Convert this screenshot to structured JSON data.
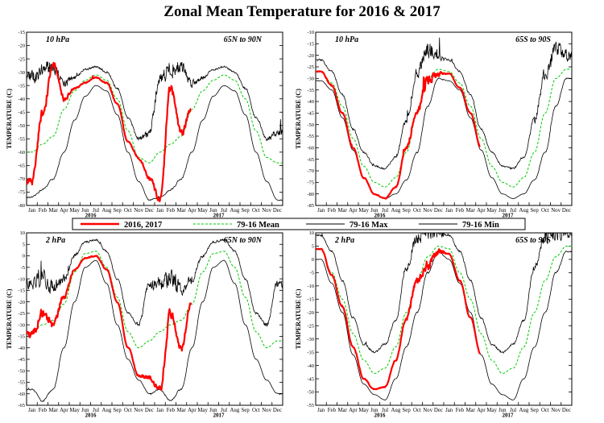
{
  "figure": {
    "title": "Zonal Mean Temperature for 2016 & 2017"
  },
  "legend": {
    "entries": [
      {
        "label": "2016, 2017",
        "color": "#ff0000",
        "style": "solid-thick"
      },
      {
        "label": "79-16 Mean",
        "color": "#00cc00",
        "style": "dashed"
      },
      {
        "label": "79-16 Max",
        "color": "#000000",
        "style": "solid"
      },
      {
        "label": "79-16 Min",
        "color": "#000000",
        "style": "solid"
      }
    ]
  },
  "chart_data": [
    {
      "type": "line",
      "pressure": "10 hPa",
      "region": "65N to 90N",
      "hemisphere": "N",
      "ylabel": "TEMPERATURE (C)",
      "ylim": [
        -80,
        -15
      ],
      "yticks": [
        -80,
        -75,
        -70,
        -65,
        -60,
        -55,
        -50,
        -45,
        -40,
        -35,
        -30,
        -25,
        -20,
        -15
      ],
      "months": [
        "Jan",
        "Feb",
        "Mar",
        "Apr",
        "May",
        "Jun",
        "Jul",
        "Aug",
        "Sep",
        "Oct",
        "Nov",
        "Dec",
        "Jan",
        "Feb",
        "Mar",
        "Apr",
        "May",
        "Jun",
        "Jul",
        "Aug",
        "Sep",
        "Oct",
        "Nov",
        "Dec"
      ],
      "years": [
        "2016",
        "2017"
      ],
      "mean_monthly": [
        -60,
        -57,
        -54,
        -44,
        -37,
        -33,
        -31,
        -33,
        -40,
        -52,
        -62,
        -64,
        -60,
        -57,
        -54,
        -44,
        -37,
        -33,
        -31,
        -33,
        -40,
        -52,
        -62,
        -64
      ],
      "max_monthly": [
        -32,
        -29,
        -28,
        -34,
        -32,
        -29,
        -28,
        -30,
        -36,
        -47,
        -55,
        -53,
        -32,
        -29,
        -28,
        -34,
        -32,
        -29,
        -28,
        -30,
        -36,
        -47,
        -55,
        -53
      ],
      "min_monthly": [
        -77,
        -74,
        -70,
        -60,
        -48,
        -39,
        -35,
        -37,
        -46,
        -60,
        -71,
        -78,
        -77,
        -74,
        -70,
        -60,
        -48,
        -39,
        -35,
        -37,
        -46,
        -60,
        -71,
        -78
      ],
      "obs_monthly": [
        -71,
        -45,
        -27,
        -40,
        -36,
        -34,
        -32,
        -34,
        -42,
        -56,
        -62,
        -70,
        -78,
        -36,
        -53,
        -43
      ]
    },
    {
      "type": "line",
      "pressure": "10 hPa",
      "region": "65S to 90S",
      "hemisphere": "S",
      "ylabel": "TEMPERATURE (C)",
      "ylim": [
        -85,
        -10
      ],
      "yticks": [
        -85,
        -80,
        -75,
        -70,
        -65,
        -60,
        -55,
        -50,
        -45,
        -40,
        -35,
        -30,
        -25,
        -20,
        -15,
        -10
      ],
      "months": [
        "Jan",
        "Feb",
        "Mar",
        "Apr",
        "May",
        "Jun",
        "Jul",
        "Aug",
        "Sep",
        "Oct",
        "Nov",
        "Dec",
        "Jan",
        "Feb",
        "Mar",
        "Apr",
        "May",
        "Jun",
        "Jul",
        "Aug",
        "Sep",
        "Oct",
        "Nov",
        "Dec"
      ],
      "years": [
        "2016",
        "2017"
      ],
      "mean_monthly": [
        -27,
        -32,
        -42,
        -56,
        -68,
        -75,
        -77,
        -73,
        -62,
        -45,
        -30,
        -26,
        -27,
        -32,
        -42,
        -56,
        -68,
        -75,
        -77,
        -73,
        -62,
        -45,
        -30,
        -26
      ],
      "max_monthly": [
        -22,
        -27,
        -37,
        -52,
        -62,
        -68,
        -69,
        -64,
        -48,
        -28,
        -18,
        -20,
        -22,
        -27,
        -37,
        -52,
        -62,
        -68,
        -69,
        -64,
        -48,
        -28,
        -18,
        -20
      ],
      "min_monthly": [
        -31,
        -35,
        -47,
        -61,
        -73,
        -80,
        -82,
        -80,
        -74,
        -62,
        -42,
        -30,
        -31,
        -35,
        -47,
        -61,
        -73,
        -80,
        -82,
        -80,
        -74,
        -62,
        -42,
        -30
      ],
      "obs_monthly": [
        -27,
        -33,
        -45,
        -60,
        -73,
        -80,
        -82,
        -77,
        -60,
        -44,
        -30,
        -28,
        -28,
        -34,
        -45,
        -60
      ]
    },
    {
      "type": "line",
      "pressure": "2 hPa",
      "region": "65N to 90N",
      "hemisphere": "N",
      "ylabel": "TEMPERATURE (C)",
      "ylim": [
        -65,
        10
      ],
      "yticks": [
        -65,
        -60,
        -55,
        -50,
        -45,
        -40,
        -35,
        -30,
        -25,
        -20,
        -15,
        -10,
        -5,
        0,
        5,
        10
      ],
      "months": [
        "Jan",
        "Feb",
        "Mar",
        "Apr",
        "May",
        "Jun",
        "Jul",
        "Aug",
        "Sep",
        "Oct",
        "Nov",
        "Dec",
        "Jan",
        "Feb",
        "Mar",
        "Apr",
        "May",
        "Jun",
        "Jul",
        "Aug",
        "Sep",
        "Oct",
        "Nov",
        "Dec"
      ],
      "years": [
        "2016",
        "2017"
      ],
      "mean_monthly": [
        -33,
        -30,
        -28,
        -21,
        -7,
        1,
        2,
        -5,
        -18,
        -33,
        -40,
        -37,
        -33,
        -30,
        -28,
        -21,
        -7,
        1,
        2,
        -5,
        -18,
        -33,
        -40,
        -37
      ],
      "max_monthly": [
        -12,
        -10,
        -14,
        -10,
        0,
        6,
        7,
        2,
        -10,
        -25,
        -30,
        -12,
        -12,
        -10,
        -14,
        -10,
        0,
        6,
        7,
        2,
        -10,
        -25,
        -30,
        -12
      ],
      "min_monthly": [
        -58,
        -63,
        -58,
        -40,
        -20,
        -5,
        -2,
        -12,
        -30,
        -45,
        -54,
        -60,
        -58,
        -63,
        -58,
        -40,
        -20,
        -5,
        -2,
        -12,
        -30,
        -45,
        -54,
        -60
      ],
      "obs_monthly": [
        -34,
        -25,
        -30,
        -18,
        -6,
        -1,
        0,
        -6,
        -20,
        -40,
        -52,
        -53,
        -58,
        -25,
        -40,
        -20
      ]
    },
    {
      "type": "line",
      "pressure": "2 hPa",
      "region": "65S to 90S",
      "hemisphere": "S",
      "ylabel": "TEMPERATURE (C)",
      "ylim": [
        -55,
        10
      ],
      "yticks": [
        -55,
        -50,
        -45,
        -40,
        -35,
        -30,
        -25,
        -20,
        -15,
        -10,
        -5,
        0,
        5,
        10
      ],
      "months": [
        "Jan",
        "Feb",
        "Mar",
        "Apr",
        "May",
        "Jun",
        "Jul",
        "Aug",
        "Sep",
        "Oct",
        "Nov",
        "Dec",
        "Jan",
        "Feb",
        "Mar",
        "Apr",
        "May",
        "Jun",
        "Jul",
        "Aug",
        "Sep",
        "Oct",
        "Nov",
        "Dec"
      ],
      "years": [
        "2016",
        "2017"
      ],
      "mean_monthly": [
        4,
        -5,
        -15,
        -28,
        -38,
        -43,
        -41,
        -33,
        -20,
        -8,
        1,
        5,
        4,
        -5,
        -15,
        -28,
        -38,
        -43,
        -41,
        -33,
        -20,
        -8,
        1,
        5
      ],
      "max_monthly": [
        9,
        3,
        -8,
        -22,
        -32,
        -35,
        -32,
        -23,
        -3,
        8,
        11,
        10,
        9,
        3,
        -8,
        -22,
        -32,
        -35,
        -32,
        -23,
        -3,
        8,
        11,
        10
      ],
      "min_monthly": [
        0,
        -9,
        -20,
        -36,
        -47,
        -51,
        -53,
        -45,
        -33,
        -20,
        -5,
        3,
        0,
        -9,
        -20,
        -36,
        -47,
        -51,
        -53,
        -45,
        -33,
        -20,
        -5,
        3
      ],
      "obs_monthly": [
        4,
        -6,
        -18,
        -33,
        -45,
        -49,
        -48,
        -38,
        -22,
        -8,
        -2,
        3,
        2,
        -8,
        -22,
        -36
      ]
    }
  ]
}
